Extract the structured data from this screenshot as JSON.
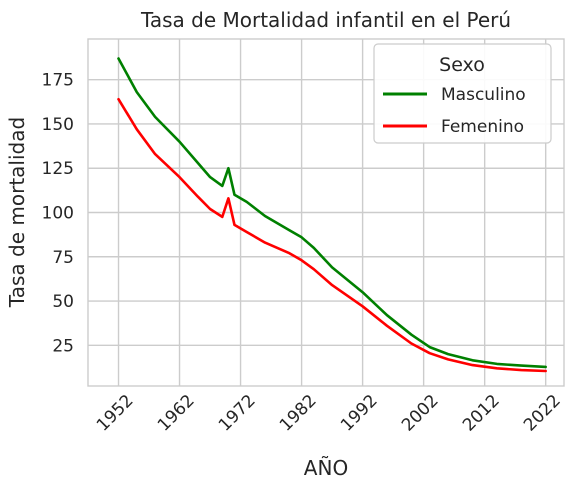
{
  "chart_data": {
    "type": "line",
    "title": "Tasa de Mortalidad infantil en el Perú",
    "xlabel": "AÑO",
    "ylabel": "Tasa de mortalidad",
    "xlim": [
      1947,
      2025
    ],
    "ylim": [
      2,
      198
    ],
    "xticks": [
      1952,
      1962,
      1972,
      1982,
      1992,
      2002,
      2012,
      2022
    ],
    "yticks": [
      25,
      50,
      75,
      100,
      125,
      150,
      175
    ],
    "grid": true,
    "legend": {
      "title": "Sexo",
      "placement": "top-right"
    },
    "x": [
      1952,
      1955,
      1958,
      1962,
      1965,
      1967,
      1969,
      1970,
      1971,
      1973,
      1976,
      1980,
      1982,
      1984,
      1987,
      1992,
      1996,
      2000,
      2003,
      2006,
      2010,
      2014,
      2018,
      2022
    ],
    "series": [
      {
        "name": "Masculino",
        "color": "#008000",
        "values": [
          187,
          168,
          154,
          140,
          128,
          120,
          115,
          125,
          110,
          106,
          98,
          90,
          86,
          80,
          69,
          55,
          42,
          31,
          24,
          20,
          16.5,
          14.5,
          13.5,
          12.8
        ]
      },
      {
        "name": "Femenino",
        "color": "#ff0000",
        "values": [
          164,
          147,
          133,
          120,
          109,
          102,
          97.5,
          108,
          93,
          89,
          83,
          77,
          73,
          68,
          59,
          47,
          36,
          26,
          20.5,
          17,
          13.8,
          12,
          11,
          10.5
        ]
      }
    ]
  }
}
